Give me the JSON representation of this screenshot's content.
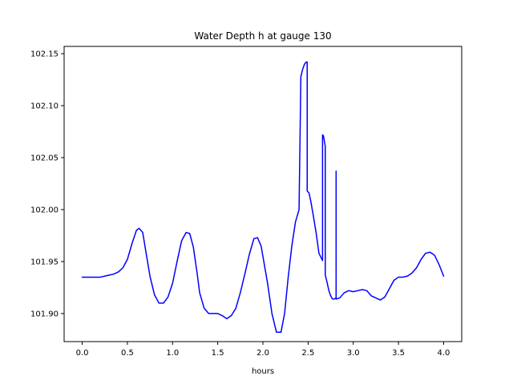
{
  "chart_data": {
    "type": "line",
    "title": "Water Depth h at gauge 130",
    "xlabel": "hours",
    "ylabel": "",
    "xlim": [
      -0.2,
      4.2
    ],
    "ylim": [
      101.873,
      102.157
    ],
    "grid": false,
    "x_ticks": [
      0.0,
      0.5,
      1.0,
      1.5,
      2.0,
      2.5,
      3.0,
      3.5,
      4.0
    ],
    "x_tick_labels": [
      "0.0",
      "0.5",
      "1.0",
      "1.5",
      "2.0",
      "2.5",
      "3.0",
      "3.5",
      "4.0"
    ],
    "y_ticks": [
      101.9,
      101.95,
      102.0,
      102.05,
      102.1,
      102.15
    ],
    "y_tick_labels": [
      "101.90",
      "101.95",
      "102.00",
      "102.05",
      "102.10",
      "102.15"
    ],
    "series": [
      {
        "color": "#0000ff",
        "x": [
          0.0,
          0.1,
          0.2,
          0.25,
          0.3,
          0.35,
          0.4,
          0.45,
          0.5,
          0.55,
          0.6,
          0.63,
          0.67,
          0.7,
          0.75,
          0.8,
          0.85,
          0.9,
          0.95,
          1.0,
          1.05,
          1.1,
          1.15,
          1.19,
          1.23,
          1.27,
          1.3,
          1.35,
          1.4,
          1.45,
          1.5,
          1.55,
          1.6,
          1.65,
          1.7,
          1.75,
          1.8,
          1.85,
          1.9,
          1.94,
          1.98,
          2.02,
          2.05,
          2.1,
          2.15,
          2.2,
          2.24,
          2.28,
          2.32,
          2.36,
          2.4,
          2.42,
          2.42,
          2.44,
          2.46,
          2.48,
          2.49,
          2.49,
          2.51,
          2.53,
          2.56,
          2.59,
          2.62,
          2.66,
          2.66,
          2.67,
          2.69,
          2.69,
          2.71,
          2.73,
          2.75,
          2.77,
          2.79,
          2.81,
          2.81,
          2.81,
          2.85,
          2.9,
          2.95,
          3.0,
          3.05,
          3.1,
          3.15,
          3.2,
          3.25,
          3.3,
          3.35,
          3.4,
          3.45,
          3.5,
          3.55,
          3.6,
          3.65,
          3.7,
          3.75,
          3.8,
          3.85,
          3.9,
          3.95,
          4.0
        ],
        "y": [
          101.935,
          101.935,
          101.935,
          101.936,
          101.937,
          101.938,
          101.94,
          101.944,
          101.952,
          101.967,
          101.98,
          101.982,
          101.978,
          101.962,
          101.936,
          101.918,
          101.91,
          101.91,
          101.916,
          101.929,
          101.95,
          101.97,
          101.978,
          101.977,
          101.964,
          101.94,
          101.92,
          101.905,
          101.9,
          101.9,
          101.9,
          101.898,
          101.895,
          101.898,
          101.905,
          101.92,
          101.938,
          101.957,
          101.972,
          101.973,
          101.965,
          101.945,
          101.93,
          101.9,
          101.882,
          101.882,
          101.9,
          101.935,
          101.965,
          101.988,
          102.0,
          102.128,
          102.128,
          102.135,
          102.14,
          102.142,
          102.142,
          102.018,
          102.016,
          102.008,
          101.993,
          101.977,
          101.958,
          101.951,
          102.072,
          102.071,
          102.061,
          101.937,
          101.93,
          101.922,
          101.917,
          101.914,
          101.914,
          101.915,
          102.037,
          101.914,
          101.915,
          101.92,
          101.922,
          101.921,
          101.922,
          101.923,
          101.922,
          101.917,
          101.915,
          101.913,
          101.916,
          101.924,
          101.932,
          101.935,
          101.935,
          101.936,
          101.939,
          101.944,
          101.952,
          101.958,
          101.959,
          101.956,
          101.947,
          101.936
        ]
      }
    ]
  }
}
